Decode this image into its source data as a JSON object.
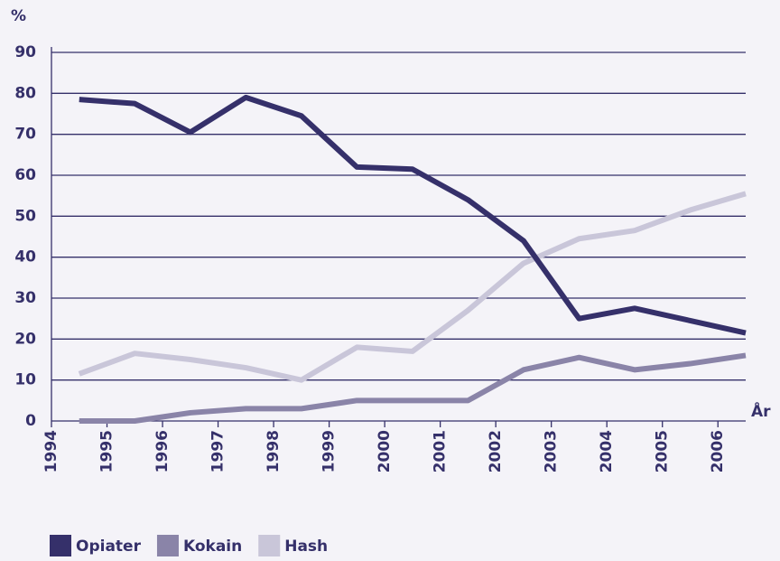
{
  "chart_data": {
    "type": "line",
    "y_label": "%",
    "x_label": "År",
    "x": [
      1994.5,
      1995.5,
      1996.5,
      1997.5,
      1998.5,
      1999.5,
      2000.5,
      2001.5,
      2002.5,
      2003.5,
      2004.5,
      2005.5,
      2006.5
    ],
    "series": [
      {
        "name": "Opiater",
        "color": "#35306a",
        "values": [
          78.5,
          77.5,
          70.5,
          79,
          74.5,
          62,
          61.5,
          54,
          44,
          25,
          27.5,
          24.5,
          21.5
        ]
      },
      {
        "name": "Kokain",
        "color": "#8a84a8",
        "values": [
          0,
          0,
          2,
          3,
          3,
          5,
          5,
          5,
          12.5,
          15.5,
          12.5,
          14,
          16
        ]
      },
      {
        "name": "Hash",
        "color": "#c9c6d9",
        "values": [
          11.5,
          16.5,
          15,
          13,
          10,
          18,
          17,
          27,
          38.5,
          44.5,
          46.5,
          51.5,
          55.5
        ]
      }
    ],
    "xlim": [
      1994,
      2006.5
    ],
    "xticks": [
      1994,
      1995,
      1996,
      1997,
      1998,
      1999,
      2000,
      2001,
      2002,
      2003,
      2004,
      2005,
      2006
    ],
    "ylim": [
      0,
      90
    ],
    "yticks": [
      0,
      10,
      20,
      30,
      40,
      50,
      60,
      70,
      80,
      90
    ],
    "grid": true,
    "legend": "bottom"
  }
}
